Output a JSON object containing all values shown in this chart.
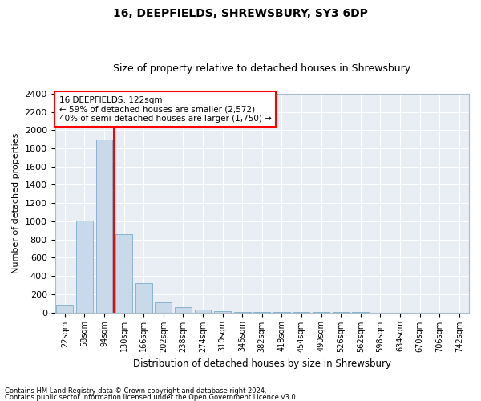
{
  "title": "16, DEEPFIELDS, SHREWSBURY, SY3 6DP",
  "subtitle": "Size of property relative to detached houses in Shrewsbury",
  "xlabel": "Distribution of detached houses by size in Shrewsbury",
  "ylabel": "Number of detached properties",
  "bar_color": "#c8daea",
  "bar_edge_color": "#7aaec8",
  "categories": [
    "22sqm",
    "58sqm",
    "94sqm",
    "130sqm",
    "166sqm",
    "202sqm",
    "238sqm",
    "274sqm",
    "310sqm",
    "346sqm",
    "382sqm",
    "418sqm",
    "454sqm",
    "490sqm",
    "526sqm",
    "562sqm",
    "598sqm",
    "634sqm",
    "670sqm",
    "706sqm",
    "742sqm"
  ],
  "values": [
    80,
    1010,
    1900,
    860,
    320,
    110,
    55,
    35,
    10,
    5,
    4,
    3,
    2,
    2,
    1,
    1,
    0,
    0,
    0,
    0,
    0
  ],
  "ylim": [
    0,
    2400
  ],
  "yticks": [
    0,
    200,
    400,
    600,
    800,
    1000,
    1200,
    1400,
    1600,
    1800,
    2000,
    2200,
    2400
  ],
  "vline_x": 2.5,
  "vline_color": "red",
  "annotation_title": "16 DEEPFIELDS: 122sqm",
  "annotation_line1": "← 59% of detached houses are smaller (2,572)",
  "annotation_line2": "40% of semi-detached houses are larger (1,750) →",
  "annotation_box_color": "red",
  "footnote1": "Contains HM Land Registry data © Crown copyright and database right 2024.",
  "footnote2": "Contains public sector information licensed under the Open Government Licence v3.0.",
  "fig_background": "#ffffff",
  "plot_background": "#e8eef4",
  "grid_color": "#ffffff",
  "title_fontsize": 10,
  "subtitle_fontsize": 9
}
